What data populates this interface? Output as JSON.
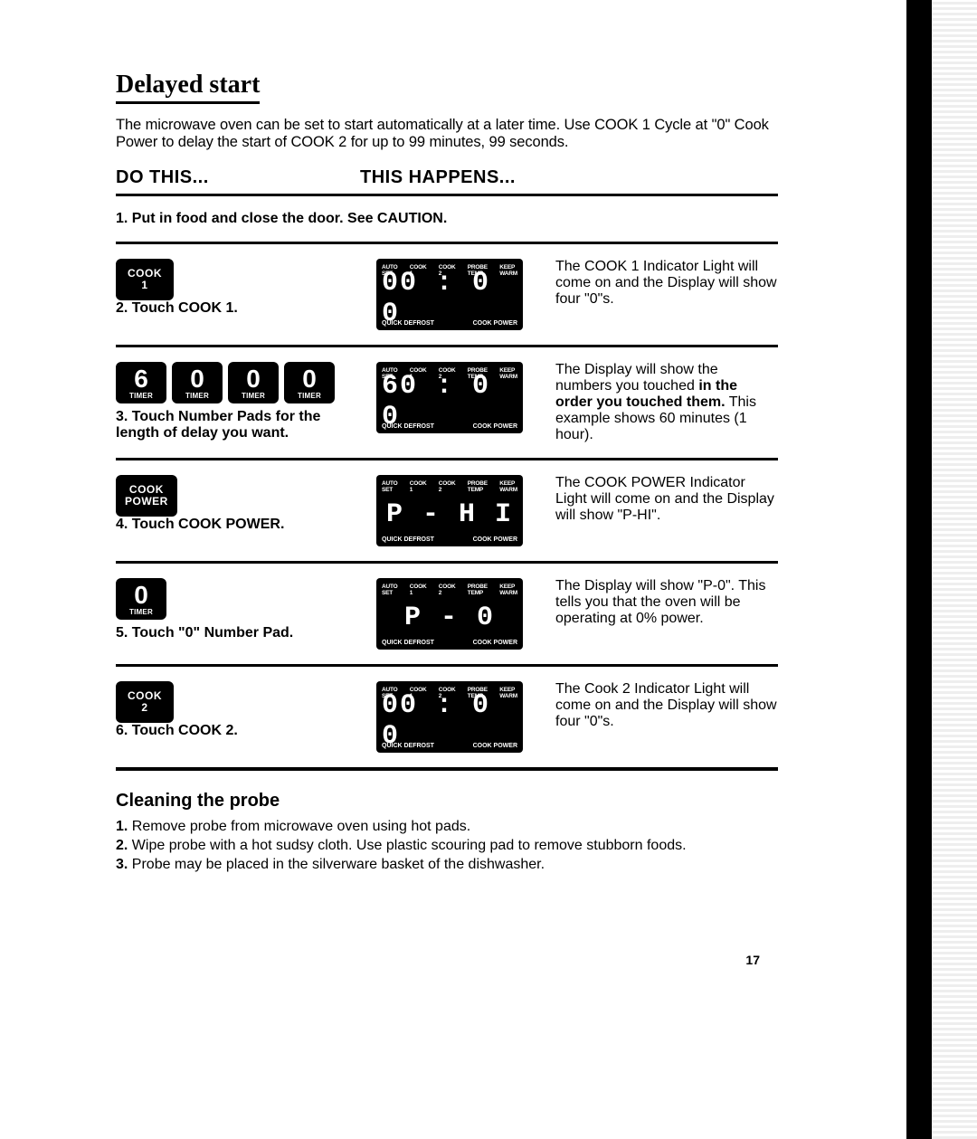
{
  "title": "Delayed start",
  "intro": "The microwave oven can be set to start automatically at a later time. Use COOK 1 Cycle at \"0\" Cook Power to delay the start of COOK 2 for up to 99 minutes, 99 seconds.",
  "col_do": "DO THIS...",
  "col_happens": "THIS HAPPENS...",
  "panel": {
    "indicators": [
      "AUTO SET",
      "COOK 1",
      "COOK 2",
      "PROBE TEMP",
      "KEEP WARM"
    ],
    "bottom_left": "QUICK DEFROST",
    "bottom_right": "COOK POWER"
  },
  "steps": [
    {
      "num": "1.",
      "action_bold": "Put in food and close the door. See CAUTION.",
      "button": null,
      "display": null,
      "explain": null
    },
    {
      "num": "2.",
      "action_pre": "Touch ",
      "action_bold": "COOK 1.",
      "button": {
        "lines": [
          "COOK",
          "1"
        ]
      },
      "display": "00 : 0 0",
      "explain": "The COOK 1 Indicator Light will come on and the Display will show four \"0\"s."
    },
    {
      "num": "3.",
      "action_pre": "Touch Number Pads for the length of delay you want.",
      "action_bold": "",
      "pads": [
        {
          "d": "6",
          "l": "TIMER"
        },
        {
          "d": "0",
          "l": "TIMER"
        },
        {
          "d": "0",
          "l": "TIMER"
        },
        {
          "d": "0",
          "l": "TIMER"
        }
      ],
      "display": "60 : 0 0",
      "explain_pre": "The Display will show the numbers you touched ",
      "explain_bold": "in the order you touched them.",
      "explain_post": " This example shows 60 minutes (1 hour)."
    },
    {
      "num": "4.",
      "action_pre": "Touch ",
      "action_bold": "COOK POWER.",
      "button": {
        "lines": [
          "COOK",
          "POWER"
        ]
      },
      "display": "P -   H I",
      "explain": "The COOK POWER Indicator Light will come on and the Display will show \"P-HI\"."
    },
    {
      "num": "5.",
      "action_pre": "Touch ",
      "action_bold": "\"0\" Number Pad.",
      "pads": [
        {
          "d": "0",
          "l": "TIMER"
        }
      ],
      "display": "P -     0",
      "explain": "The Display will show \"P-0\". This tells you that the oven will be operating at 0% power."
    },
    {
      "num": "6.",
      "action_pre": "Touch ",
      "action_bold": "COOK 2.",
      "button": {
        "lines": [
          "COOK",
          "2"
        ]
      },
      "display": "00 : 0 0",
      "explain": "The Cook 2 Indicator Light will come on and the Display will show four \"0\"s."
    }
  ],
  "cleaning_title": "Cleaning the probe",
  "cleaning": [
    {
      "n": "1.",
      "t": "Remove probe from microwave oven using hot pads."
    },
    {
      "n": "2.",
      "t": "Wipe probe with a hot sudsy cloth. Use plastic scouring pad to remove stubborn foods."
    },
    {
      "n": "3.",
      "t": "Probe may be placed in the silverware basket of the dishwasher."
    }
  ],
  "page_number": "17"
}
